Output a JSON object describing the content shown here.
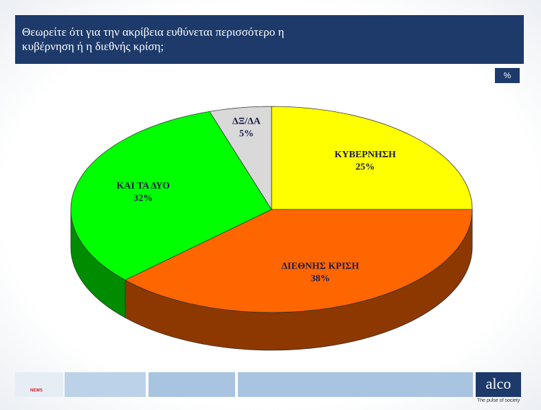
{
  "chart_data": {
    "type": "pie",
    "title": "Θεωρείτε ότι για την ακρίβεια ευθύνεται περισσότερο η κυβέρνηση ή η διεθνής κρίση;",
    "unit": "%",
    "categories": [
      "ΚΥΒΕΡΝΗΣΗ",
      "ΔΙΕΘΝΗΣ ΚΡΙΣΗ",
      "ΚΑΙ ΤΑ ΔΥΟ",
      "ΔΞ/ΔΑ"
    ],
    "values": [
      25,
      38,
      32,
      5
    ],
    "value_labels": [
      "25%",
      "38%",
      "32%",
      "5%"
    ],
    "colors": [
      "#ffff00",
      "#ff6600",
      "#00ff00",
      "#d9d9d9"
    ]
  },
  "footer": {
    "badge": "NEWS",
    "logo": "alco",
    "tagline": "The pulse of society"
  }
}
